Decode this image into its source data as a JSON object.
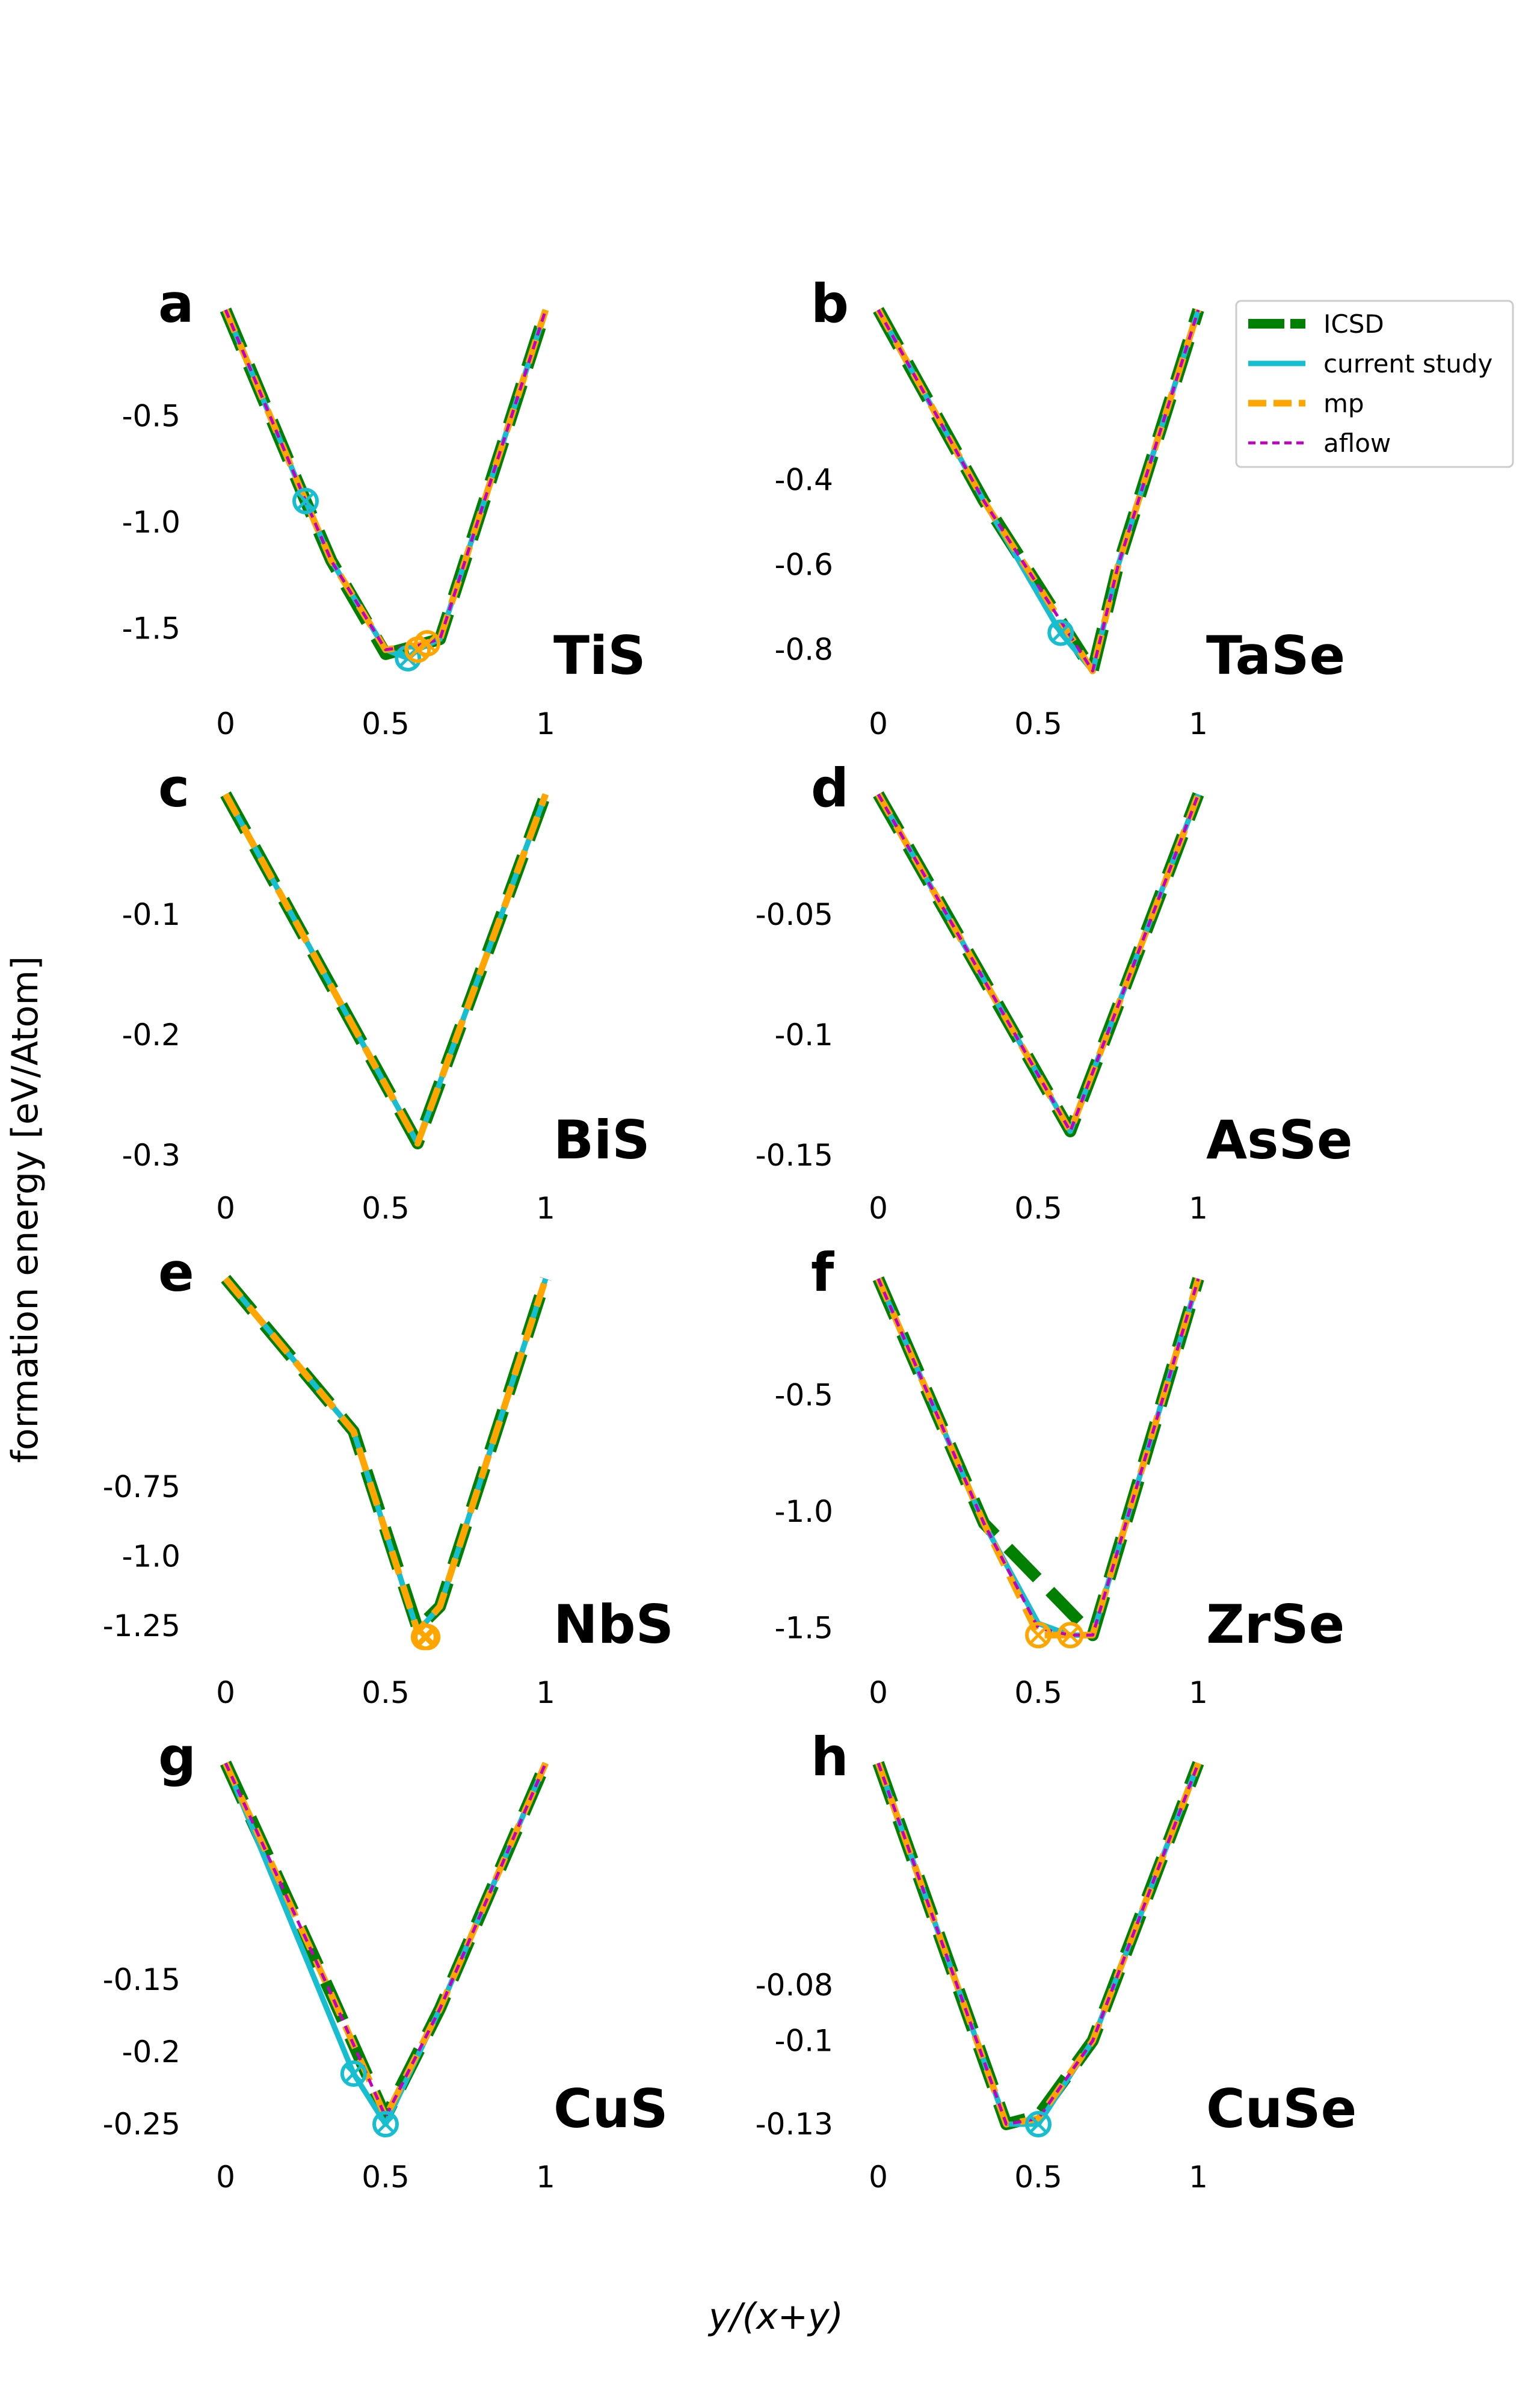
{
  "figure": {
    "ylabel": "formation energy [eV/Atom]",
    "xlabel": "y/(x+y)"
  },
  "legend": {
    "placement": "top-right of panel b",
    "entries": [
      {
        "name": "ICSD",
        "color": "#008000",
        "style": "thick-dashed"
      },
      {
        "name": "current study",
        "color": "#17becf",
        "style": "solid"
      },
      {
        "name": "mp",
        "color": "#ffa500",
        "style": "dashed"
      },
      {
        "name": "aflow",
        "color": "#c000c0",
        "style": "fine-dashed"
      }
    ]
  },
  "colors": {
    "icsd": "#008000",
    "current": "#17becf",
    "mp": "#ffa500",
    "aflow": "#c000c0"
  },
  "chart_data": [
    {
      "panel": "a",
      "title": "TiS",
      "type": "line",
      "ylim": [
        -1.7,
        0.0
      ],
      "yticks": [
        {
          "v": -0.5,
          "t": "-0.5"
        },
        {
          "v": -1.0,
          "t": "-1.0"
        },
        {
          "v": -1.5,
          "t": "-1.5"
        }
      ],
      "xticks": [
        {
          "v": 0,
          "t": "0"
        },
        {
          "v": 0.5,
          "t": "0.5"
        },
        {
          "v": 1,
          "t": "1"
        }
      ],
      "series": [
        {
          "name": "ICSD",
          "x": [
            0,
            0.25,
            0.33,
            0.5,
            0.6,
            0.67,
            1
          ],
          "y": [
            0,
            -0.9,
            -1.18,
            -1.62,
            -1.58,
            -1.55,
            0
          ]
        },
        {
          "name": "current study",
          "x": [
            0,
            0.25,
            0.33,
            0.5,
            0.57,
            0.6,
            0.67,
            1
          ],
          "y": [
            0,
            -0.9,
            -1.18,
            -1.6,
            -1.64,
            -1.6,
            -1.55,
            0
          ]
        },
        {
          "name": "mp",
          "x": [
            0,
            0.25,
            0.33,
            0.5,
            0.6,
            0.67,
            1
          ],
          "y": [
            0,
            -0.9,
            -1.18,
            -1.6,
            -1.58,
            -1.55,
            0
          ]
        },
        {
          "name": "aflow",
          "x": [
            0,
            0.25,
            0.33,
            0.5,
            0.6,
            0.67,
            1
          ],
          "y": [
            0,
            -0.9,
            -1.18,
            -1.6,
            -1.58,
            -1.55,
            0
          ]
        }
      ],
      "unstable": [
        {
          "source": "current study",
          "x": 0.25,
          "y": -0.9
        },
        {
          "source": "current study",
          "x": 0.57,
          "y": -1.64
        },
        {
          "source": "mp",
          "x": 0.6,
          "y": -1.6
        },
        {
          "source": "mp",
          "x": 0.63,
          "y": -1.57
        }
      ]
    },
    {
      "panel": "b",
      "title": "TaSe",
      "type": "line",
      "ylim": [
        -0.85,
        -0.0
      ],
      "yticks": [
        {
          "v": -0.4,
          "t": "-0.4"
        },
        {
          "v": -0.6,
          "t": "-0.6"
        },
        {
          "v": -0.8,
          "t": "-0.8"
        }
      ],
      "xticks": [
        {
          "v": 0,
          "t": "0"
        },
        {
          "v": 0.5,
          "t": "0.5"
        },
        {
          "v": 1,
          "t": "1"
        }
      ],
      "series": [
        {
          "name": "ICSD",
          "x": [
            0,
            0.33,
            0.67,
            0.75,
            1
          ],
          "y": [
            0,
            -0.45,
            -0.85,
            -0.6,
            0
          ]
        },
        {
          "name": "current study",
          "x": [
            0,
            0.33,
            0.57,
            0.67,
            0.75,
            1
          ],
          "y": [
            0,
            -0.45,
            -0.76,
            -0.85,
            -0.6,
            0
          ]
        },
        {
          "name": "mp",
          "x": [
            0,
            0.33,
            0.67,
            0.75,
            1
          ],
          "y": [
            0,
            -0.45,
            -0.85,
            -0.6,
            0
          ]
        },
        {
          "name": "aflow",
          "x": [
            0,
            0.33,
            0.67,
            0.75,
            1
          ],
          "y": [
            0,
            -0.45,
            -0.85,
            -0.6,
            0
          ]
        }
      ],
      "unstable": [
        {
          "source": "current study",
          "x": 0.57,
          "y": -0.76
        }
      ]
    },
    {
      "panel": "c",
      "title": "BiS",
      "type": "line",
      "ylim": [
        -0.3,
        0.0
      ],
      "yticks": [
        {
          "v": -0.1,
          "t": "-0.1"
        },
        {
          "v": -0.2,
          "t": "-0.2"
        },
        {
          "v": -0.3,
          "t": "-0.3"
        }
      ],
      "xticks": [
        {
          "v": 0,
          "t": "0"
        },
        {
          "v": 0.5,
          "t": "0.5"
        },
        {
          "v": 1,
          "t": "1"
        }
      ],
      "series": [
        {
          "name": "ICSD",
          "x": [
            0,
            0.6,
            1
          ],
          "y": [
            0,
            -0.29,
            0
          ]
        },
        {
          "name": "current study",
          "x": [
            0,
            0.6,
            1
          ],
          "y": [
            0,
            -0.29,
            0
          ]
        },
        {
          "name": "mp",
          "x": [
            0,
            0.6,
            1
          ],
          "y": [
            0,
            -0.29,
            0
          ]
        }
      ],
      "unstable": []
    },
    {
      "panel": "d",
      "title": "AsSe",
      "type": "line",
      "ylim": [
        -0.15,
        0.0
      ],
      "yticks": [
        {
          "v": -0.05,
          "t": "-0.05"
        },
        {
          "v": -0.1,
          "t": "-0.1"
        },
        {
          "v": -0.15,
          "t": "-0.15"
        }
      ],
      "xticks": [
        {
          "v": 0,
          "t": "0"
        },
        {
          "v": 0.5,
          "t": "0.5"
        },
        {
          "v": 1,
          "t": "1"
        }
      ],
      "series": [
        {
          "name": "ICSD",
          "x": [
            0,
            0.6,
            1
          ],
          "y": [
            0,
            -0.14,
            0
          ]
        },
        {
          "name": "current study",
          "x": [
            0,
            0.6,
            1
          ],
          "y": [
            0,
            -0.14,
            0
          ]
        },
        {
          "name": "mp",
          "x": [
            0,
            0.6,
            1
          ],
          "y": [
            0,
            -0.14,
            0
          ]
        },
        {
          "name": "aflow",
          "x": [
            0,
            0.6,
            1
          ],
          "y": [
            0,
            -0.14,
            0
          ]
        }
      ],
      "unstable": []
    },
    {
      "panel": "e",
      "title": "NbS",
      "type": "line",
      "ylim": [
        -1.3,
        -0.0
      ],
      "yticks": [
        {
          "v": -0.75,
          "t": "-0.75"
        },
        {
          "v": -1.0,
          "t": "-1.0"
        },
        {
          "v": -1.25,
          "t": "-1.25"
        }
      ],
      "xticks": [
        {
          "v": 0,
          "t": "0"
        },
        {
          "v": 0.5,
          "t": "0.5"
        },
        {
          "v": 1,
          "t": "1"
        }
      ],
      "series": [
        {
          "name": "ICSD",
          "x": [
            0,
            0.4,
            0.6,
            0.67,
            1
          ],
          "y": [
            0,
            -0.55,
            -1.26,
            -1.18,
            0
          ]
        },
        {
          "name": "current study",
          "x": [
            0,
            0.4,
            0.6,
            0.67,
            1
          ],
          "y": [
            0,
            -0.55,
            -1.27,
            -1.18,
            0
          ]
        },
        {
          "name": "mp",
          "x": [
            0,
            0.4,
            0.6,
            0.67,
            1
          ],
          "y": [
            0,
            -0.55,
            -1.27,
            -1.18,
            0
          ]
        }
      ],
      "unstable": [
        {
          "source": "mp",
          "x": 0.62,
          "y": -1.29
        },
        {
          "source": "mp",
          "x": 0.63,
          "y": -1.29
        }
      ]
    },
    {
      "panel": "f",
      "title": "ZrSe",
      "type": "line",
      "ylim": [
        -1.55,
        0.0
      ],
      "yticks": [
        {
          "v": -0.5,
          "t": "-0.5"
        },
        {
          "v": -1.0,
          "t": "-1.0"
        },
        {
          "v": -1.5,
          "t": "-1.5"
        }
      ],
      "xticks": [
        {
          "v": 0,
          "t": "0"
        },
        {
          "v": 0.5,
          "t": "0.5"
        },
        {
          "v": 1,
          "t": "1"
        }
      ],
      "series": [
        {
          "name": "ICSD",
          "x": [
            0,
            0.33,
            0.67,
            1
          ],
          "y": [
            0,
            -1.05,
            -1.53,
            0
          ]
        },
        {
          "name": "current study",
          "x": [
            0,
            0.33,
            0.5,
            0.6,
            0.67,
            1
          ],
          "y": [
            0,
            -1.05,
            -1.48,
            -1.53,
            -1.53,
            0
          ]
        },
        {
          "name": "mp",
          "x": [
            0,
            0.33,
            0.5,
            0.6,
            0.67,
            1
          ],
          "y": [
            0,
            -1.05,
            -1.53,
            -1.53,
            -1.53,
            0
          ]
        },
        {
          "name": "aflow",
          "x": [
            0,
            0.33,
            0.5,
            0.6,
            0.67,
            1
          ],
          "y": [
            0,
            -1.05,
            -1.5,
            -1.53,
            -1.53,
            0
          ]
        }
      ],
      "unstable": [
        {
          "source": "mp",
          "x": 0.5,
          "y": -1.53
        },
        {
          "source": "mp",
          "x": 0.6,
          "y": -1.53
        }
      ]
    },
    {
      "panel": "g",
      "title": "CuS",
      "type": "line",
      "ylim": [
        -0.25,
        0.0
      ],
      "yticks": [
        {
          "v": -0.15,
          "t": "-0.15"
        },
        {
          "v": -0.2,
          "t": "-0.2"
        },
        {
          "v": -0.25,
          "t": "-0.25"
        }
      ],
      "xticks": [
        {
          "v": 0,
          "t": "0"
        },
        {
          "v": 0.5,
          "t": "0.5"
        },
        {
          "v": 1,
          "t": "1"
        }
      ],
      "series": [
        {
          "name": "ICSD",
          "x": [
            0,
            0.33,
            0.5,
            0.67,
            1
          ],
          "y": [
            0,
            -0.16,
            -0.245,
            -0.17,
            0
          ]
        },
        {
          "name": "current study",
          "x": [
            0,
            0.4,
            0.5,
            0.67,
            1
          ],
          "y": [
            0,
            -0.215,
            -0.25,
            -0.17,
            0
          ]
        },
        {
          "name": "mp",
          "x": [
            0,
            0.33,
            0.5,
            0.67,
            1
          ],
          "y": [
            0,
            -0.16,
            -0.245,
            -0.17,
            0
          ]
        },
        {
          "name": "aflow",
          "x": [
            0,
            0.33,
            0.5,
            0.67,
            1
          ],
          "y": [
            0,
            -0.16,
            -0.245,
            -0.17,
            0
          ]
        }
      ],
      "unstable": [
        {
          "source": "current study",
          "x": 0.4,
          "y": -0.215
        },
        {
          "source": "current study",
          "x": 0.5,
          "y": -0.25
        }
      ]
    },
    {
      "panel": "h",
      "title": "CuSe",
      "type": "line",
      "ylim": [
        -0.13,
        0.0
      ],
      "yticks": [
        {
          "v": -0.08,
          "t": "-0.08"
        },
        {
          "v": -0.1,
          "t": "-0.1"
        },
        {
          "v": -0.13,
          "t": "-0.13"
        }
      ],
      "xticks": [
        {
          "v": 0,
          "t": "0"
        },
        {
          "v": 0.5,
          "t": "0.5"
        },
        {
          "v": 1,
          "t": "1"
        }
      ],
      "series": [
        {
          "name": "ICSD",
          "x": [
            0,
            0.4,
            0.5,
            0.67,
            1
          ],
          "y": [
            0,
            -0.13,
            -0.127,
            -0.1,
            0
          ]
        },
        {
          "name": "current study",
          "x": [
            0,
            0.4,
            0.5,
            0.67,
            1
          ],
          "y": [
            0,
            -0.13,
            -0.13,
            -0.1,
            0
          ]
        },
        {
          "name": "mp",
          "x": [
            0,
            0.4,
            0.5,
            0.67,
            1
          ],
          "y": [
            0,
            -0.13,
            -0.128,
            -0.1,
            0
          ]
        },
        {
          "name": "aflow",
          "x": [
            0,
            0.4,
            0.5,
            0.67,
            1
          ],
          "y": [
            0,
            -0.13,
            -0.128,
            -0.1,
            0
          ]
        }
      ],
      "unstable": [
        {
          "source": "current study",
          "x": 0.5,
          "y": -0.13
        }
      ]
    }
  ]
}
